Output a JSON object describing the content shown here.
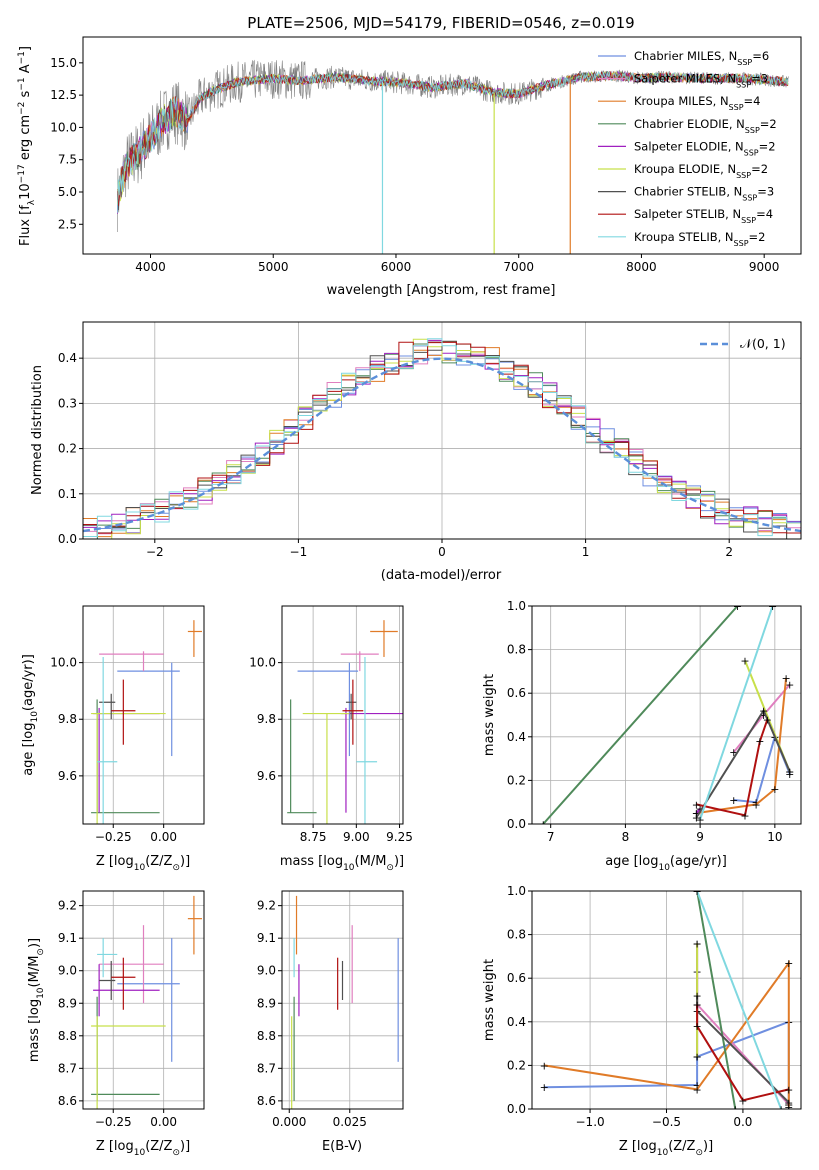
{
  "colors": {
    "miles_chabrier": "#6f8fe0",
    "miles_salpeter": "#e07fbf",
    "miles_kroupa": "#e07b28",
    "elodie_chabrier": "#4f8a5a",
    "elodie_salpeter": "#a020c0",
    "elodie_kroupa": "#c8e04a",
    "stelib_chabrier": "#505050",
    "stelib_salpeter": "#b01010",
    "stelib_kroupa": "#80d8e0",
    "normal": "#5b8fd9",
    "grid": "#b0b0b0"
  },
  "chart_data": [
    {
      "id": "spectrum",
      "type": "line",
      "title": "PLATE=2506, MJD=54179, FIBERID=0546, z=0.019",
      "xlabel": "wavelength [Angstrom, rest frame]",
      "ylabel": "Flux [f",
      "ylabel_parts": [
        "Flux [f",
        "λ",
        "10",
        "−17",
        " erg cm",
        "−2",
        " s",
        "−1",
        " A",
        "−1",
        "]"
      ],
      "xlim": [
        3450,
        9300
      ],
      "ylim": [
        0.2,
        17.0
      ],
      "xticks": [
        4000,
        5000,
        6000,
        7000,
        8000,
        9000
      ],
      "xtick_labels": [
        "4000",
        "5000",
        "6000",
        "7000",
        "8000",
        "9000"
      ],
      "yticks": [
        2.5,
        5.0,
        7.5,
        10.0,
        12.5,
        15.0
      ],
      "ytick_labels": [
        "2.5",
        "5.0",
        "7.5",
        "10.0",
        "12.5",
        "15.0"
      ],
      "legend": [
        {
          "label": "Chabrier MILES, N",
          "sub": "SSP",
          "suffix": "=6",
          "color": "#6f8fe0"
        },
        {
          "label": "Salpeter MILES, N",
          "sub": "SSP",
          "suffix": "=3",
          "color": "#e07fbf"
        },
        {
          "label": "Kroupa MILES, N",
          "sub": "SSP",
          "suffix": "=4",
          "color": "#e07b28"
        },
        {
          "label": "Chabrier ELODIE, N",
          "sub": "SSP",
          "suffix": "=2",
          "color": "#4f8a5a"
        },
        {
          "label": "Salpeter ELODIE, N",
          "sub": "SSP",
          "suffix": "=2",
          "color": "#a020c0"
        },
        {
          "label": "Kroupa ELODIE, N",
          "sub": "SSP",
          "suffix": "=2",
          "color": "#c8e04a"
        },
        {
          "label": "Chabrier STELIB, N",
          "sub": "SSP",
          "suffix": "=3",
          "color": "#505050"
        },
        {
          "label": "Salpeter STELIB, N",
          "sub": "SSP",
          "suffix": "=4",
          "color": "#b01010"
        },
        {
          "label": "Kroupa STELIB, N",
          "sub": "SSP",
          "suffix": "=2",
          "color": "#80d8e0"
        }
      ],
      "continuum": [
        [
          3730,
          4.5
        ],
        [
          3800,
          7.0
        ],
        [
          3900,
          8.0
        ],
        [
          4000,
          9.2
        ],
        [
          4100,
          10.5
        ],
        [
          4200,
          11.3
        ],
        [
          4300,
          10.5
        ],
        [
          4400,
          12.2
        ],
        [
          4500,
          12.8
        ],
        [
          4700,
          13.5
        ],
        [
          5000,
          13.8
        ],
        [
          5200,
          13.6
        ],
        [
          5500,
          13.9
        ],
        [
          5800,
          13.6
        ],
        [
          6000,
          13.5
        ],
        [
          6300,
          13.1
        ],
        [
          6560,
          13.4
        ],
        [
          6800,
          12.7
        ],
        [
          7000,
          12.6
        ],
        [
          7200,
          13.2
        ],
        [
          7500,
          13.9
        ],
        [
          7800,
          14.0
        ],
        [
          8000,
          13.8
        ],
        [
          8200,
          13.9
        ],
        [
          8500,
          13.8
        ],
        [
          8800,
          13.8
        ],
        [
          9000,
          13.7
        ],
        [
          9200,
          13.5
        ]
      ],
      "dips": [
        {
          "x": 5890,
          "y": 0.2,
          "color": "#80d8e0"
        },
        {
          "x": 6800,
          "y": 0.2,
          "color": "#c8e04a"
        },
        {
          "x": 7420,
          "y": 0.2,
          "color": "#e07b28"
        }
      ]
    },
    {
      "id": "residuals",
      "type": "line",
      "xlabel": "(data-model)/error",
      "ylabel": "Normed distribution",
      "xlim": [
        -2.5,
        2.5
      ],
      "ylim": [
        0.0,
        0.48
      ],
      "xticks": [
        -2,
        -1,
        0,
        1,
        2
      ],
      "xtick_labels": [
        "−2",
        "−1",
        "0",
        "1",
        "2"
      ],
      "yticks": [
        0.0,
        0.1,
        0.2,
        0.3,
        0.4
      ],
      "ytick_labels": [
        "0.0",
        "0.1",
        "0.2",
        "0.3",
        "0.4"
      ],
      "legend": [
        {
          "label": "𝒩(0, 1)",
          "color": "#5b8fd9",
          "style": "dashed"
        }
      ],
      "normal_curve": {
        "mean": 0,
        "sigma": 1
      }
    },
    {
      "id": "age-vs-Z",
      "type": "scatter",
      "xlabel": "Z [log",
      "xlabel_parts": [
        "Z [log",
        "10",
        "(Z/Z",
        "⊙",
        ")]"
      ],
      "ylabel_parts": [
        "age  [log",
        "10",
        "(age/yr)]"
      ],
      "xlim": [
        -0.4,
        0.2
      ],
      "ylim": [
        9.43,
        10.2
      ],
      "xticks": [
        -0.25,
        0.0
      ],
      "xtick_labels": [
        "−0.25",
        "0.00"
      ],
      "yticks": [
        9.6,
        9.8,
        10.0
      ],
      "ytick_labels": [
        "9.6",
        "9.8",
        "10.0"
      ]
    },
    {
      "id": "age-vs-mass",
      "type": "scatter",
      "xlabel_parts": [
        "mass [log",
        "10",
        "(M/M",
        "⊙",
        ")]"
      ],
      "xlim": [
        8.57,
        9.27
      ],
      "ylim": [
        9.43,
        10.2
      ],
      "xticks": [
        8.75,
        9.0,
        9.25
      ],
      "xtick_labels": [
        "8.75",
        "9.00",
        "9.25"
      ],
      "yticks": [
        9.6,
        9.8,
        10.0
      ],
      "ytick_labels": [
        "9.6",
        "9.8",
        "10.0"
      ]
    },
    {
      "id": "mass-weight-vs-age",
      "type": "line",
      "xlabel_parts": [
        "age  [log",
        "10",
        "(age/yr)]"
      ],
      "ylabel": "mass weight",
      "xlim": [
        6.75,
        10.35
      ],
      "ylim": [
        0.0,
        1.0
      ],
      "xticks": [
        7,
        8,
        9,
        10
      ],
      "xtick_labels": [
        "7",
        "8",
        "9",
        "10"
      ],
      "yticks": [
        0.0,
        0.2,
        0.4,
        0.6,
        0.8,
        1.0
      ],
      "ytick_labels": [
        "0.0",
        "0.2",
        "0.4",
        "0.6",
        "0.8",
        "1.0"
      ]
    },
    {
      "id": "mass-vs-Z",
      "type": "scatter",
      "xlabel_parts": [
        "Z [log",
        "10",
        "(Z/Z",
        "⊙",
        ")]"
      ],
      "ylabel_parts": [
        "mass [log",
        "10",
        "(M/M",
        "⊙",
        ")]"
      ],
      "xlim": [
        -0.4,
        0.2
      ],
      "ylim": [
        8.575,
        9.245
      ],
      "xticks": [
        -0.25,
        0.0
      ],
      "xtick_labels": [
        "−0.25",
        "0.00"
      ],
      "yticks": [
        8.6,
        8.7,
        8.8,
        8.9,
        9.0,
        9.1,
        9.2
      ],
      "ytick_labels": [
        "8.6",
        "8.7",
        "8.8",
        "8.9",
        "9.0",
        "9.1",
        "9.2"
      ]
    },
    {
      "id": "mass-vs-ebv",
      "type": "scatter",
      "xlabel": "E(B-V)",
      "xlim": [
        -0.003,
        0.047
      ],
      "ylim": [
        8.575,
        9.245
      ],
      "xticks": [
        0.0,
        0.025
      ],
      "xtick_labels": [
        "0.000",
        "0.025"
      ],
      "yticks": [
        8.6,
        8.7,
        8.8,
        8.9,
        9.0,
        9.1,
        9.2
      ],
      "ytick_labels": [
        "8.6",
        "8.7",
        "8.8",
        "8.9",
        "9.0",
        "9.1",
        "9.2"
      ]
    },
    {
      "id": "mass-weight-vs-Z",
      "type": "line",
      "xlabel_parts": [
        "Z [log",
        "10",
        "(Z/Z",
        "⊙",
        ")]"
      ],
      "ylabel": "mass weight",
      "xlim": [
        -1.38,
        0.38
      ],
      "ylim": [
        0.0,
        1.0
      ],
      "xticks": [
        -1.0,
        -0.5,
        0.0
      ],
      "xtick_labels": [
        "−1.0",
        "−0.5",
        "0.0"
      ],
      "yticks": [
        0.0,
        0.2,
        0.4,
        0.6,
        0.8,
        1.0
      ],
      "ytick_labels": [
        "0.0",
        "0.2",
        "0.4",
        "0.6",
        "0.8",
        "1.0"
      ]
    }
  ],
  "models": [
    {
      "name": "Chabrier MILES",
      "color": "#6f8fe0",
      "Z": 0.04,
      "age": 9.97,
      "mass": 8.96,
      "ebv": 0.045,
      "Zerr": [
        0.27,
        0.04
      ],
      "ageerr": [
        0.3,
        0.03
      ],
      "masserr": [
        0.24,
        0.14
      ],
      "masserr_age": [
        0.3,
        0.05
      ],
      "ageerr_m": [
        0.3,
        0.03
      ],
      "w_age": [
        [
          9.45,
          0.11
        ],
        [
          9.75,
          0.1
        ],
        [
          10.0,
          0.4
        ],
        [
          10.2,
          0.23
        ]
      ],
      "w_Z": [
        [
          -1.3,
          0.1
        ],
        [
          -0.3,
          0.11
        ],
        [
          -0.3,
          0.24
        ],
        [
          0.3,
          0.4
        ],
        [
          0.3,
          0.02
        ]
      ]
    },
    {
      "name": "Salpeter MILES",
      "color": "#e07fbf",
      "Z": -0.1,
      "age": 10.03,
      "mass": 9.02,
      "ebv": 0.026,
      "Zerr": [
        0.22,
        0.1
      ],
      "ageerr": [
        0.06,
        0.01
      ],
      "masserr": [
        0.12,
        0.12
      ],
      "masserr_age": [
        0.11,
        0.11
      ],
      "ageerr_m": [
        0.06,
        0.01
      ],
      "w_age": [
        [
          9.45,
          0.33
        ],
        [
          9.85,
          0.5
        ],
        [
          10.2,
          0.64
        ]
      ],
      "w_Z": [
        [
          -0.3,
          0.63
        ],
        [
          -0.3,
          0.48
        ],
        [
          0.3,
          0.02
        ]
      ]
    },
    {
      "name": "Kroupa MILES",
      "color": "#e07b28",
      "Z": 0.15,
      "age": 10.11,
      "mass": 9.16,
      "ebv": 0.003,
      "Zerr": [
        0.03,
        0.04
      ],
      "ageerr": [
        0.09,
        0.04
      ],
      "masserr": [
        0.11,
        0.07
      ],
      "masserr_age": [
        0.08,
        0.08
      ],
      "ageerr_m": [
        0.09,
        0.04
      ],
      "w_age": [
        [
          8.95,
          0.05
        ],
        [
          9.75,
          0.09
        ],
        [
          10.0,
          0.16
        ],
        [
          10.15,
          0.67
        ]
      ],
      "w_Z": [
        [
          -1.3,
          0.2
        ],
        [
          -0.3,
          0.09
        ],
        [
          0.3,
          0.67
        ],
        [
          0.3,
          0.01
        ]
      ]
    },
    {
      "name": "Chabrier ELODIE",
      "color": "#4f8a5a",
      "Z": -0.33,
      "age": 9.47,
      "mass": 8.62,
      "ebv": 0.002,
      "Zerr": [
        0.03,
        0.31
      ],
      "ageerr": [
        0.0,
        0.4
      ],
      "masserr": [
        0.02,
        0.3
      ],
      "masserr_age": [
        0.02,
        0.15
      ],
      "ageerr_m": [
        0.0,
        0.4
      ],
      "w_age": [
        [
          6.9,
          0.0
        ],
        [
          9.5,
          1.0
        ]
      ],
      "w_Z": [
        [
          -0.3,
          1.0
        ],
        [
          -0.05,
          0.0
        ]
      ]
    },
    {
      "name": "Salpeter ELODIE",
      "color": "#a020c0",
      "Z": -0.32,
      "age": 9.82,
      "mass": 8.94,
      "ebv": 0.004,
      "Zerr": [
        0.03,
        0.3
      ],
      "ageerr": [
        0.35,
        0.02
      ],
      "masserr": [
        0.08,
        0.08
      ],
      "masserr_age": [
        0.03,
        0.34
      ],
      "ageerr_m": [
        0.35,
        0.02
      ],
      "w_age": [
        [
          8.95,
          0.05
        ],
        [
          9.0,
          0.07
        ]
      ],
      "w_Z": [
        [
          -0.3,
          0.76
        ],
        [
          -0.3,
          0.24
        ]
      ]
    },
    {
      "name": "Kroupa ELODIE",
      "color": "#c8e04a",
      "Z": -0.33,
      "age": 9.82,
      "mass": 8.83,
      "ebv": 0.001,
      "Zerr": [
        0.03,
        0.34
      ],
      "ageerr": [
        0.4,
        0.0
      ],
      "masserr": [
        0.26,
        0.03
      ],
      "masserr_age": [
        0.14,
        0.13
      ],
      "ageerr_m": [
        0.4,
        0.0
      ],
      "w_age": [
        [
          9.6,
          0.75
        ],
        [
          10.2,
          0.24
        ]
      ],
      "w_Z": [
        [
          -0.3,
          0.76
        ],
        [
          -0.3,
          0.24
        ]
      ]
    },
    {
      "name": "Chabrier STELIB",
      "color": "#505050",
      "Z": -0.26,
      "age": 9.86,
      "mass": 8.97,
      "ebv": 0.022,
      "Zerr": [
        0.06,
        0.02
      ],
      "ageerr": [
        0.06,
        0.03
      ],
      "masserr": [
        0.06,
        0.06
      ],
      "masserr_age": [
        0.03,
        0.03
      ],
      "ageerr_m": [
        0.06,
        0.03
      ],
      "w_age": [
        [
          8.95,
          0.03
        ],
        [
          9.85,
          0.52
        ],
        [
          10.2,
          0.24
        ]
      ],
      "w_Z": [
        [
          -0.3,
          0.52
        ],
        [
          -0.3,
          0.45
        ],
        [
          0.3,
          0.03
        ]
      ]
    },
    {
      "name": "Salpeter STELIB",
      "color": "#b01010",
      "Z": -0.2,
      "age": 9.83,
      "mass": 8.98,
      "ebv": 0.02,
      "Zerr": [
        0.06,
        0.06
      ],
      "ageerr": [
        0.12,
        0.11
      ],
      "masserr": [
        0.1,
        0.06
      ],
      "masserr_age": [
        0.06,
        0.06
      ],
      "ageerr_m": [
        0.12,
        0.11
      ],
      "w_age": [
        [
          8.95,
          0.09
        ],
        [
          9.6,
          0.04
        ],
        [
          9.8,
          0.38
        ],
        [
          9.9,
          0.48
        ]
      ],
      "w_Z": [
        [
          -0.3,
          0.48
        ],
        [
          -0.3,
          0.38
        ],
        [
          0.0,
          0.04
        ],
        [
          0.3,
          0.09
        ]
      ]
    },
    {
      "name": "Kroupa STELIB",
      "color": "#80d8e0",
      "Z": -0.3,
      "age": 9.65,
      "mass": 9.05,
      "ebv": 0.002,
      "Zerr": [
        0.03,
        0.07
      ],
      "ageerr": [
        0.25,
        0.37
      ],
      "masserr": [
        0.07,
        0.05
      ],
      "masserr_age": [
        0.05,
        0.07
      ],
      "ageerr_m": [
        0.25,
        0.37
      ],
      "w_age": [
        [
          9.0,
          0.02
        ],
        [
          9.97,
          1.0
        ]
      ],
      "w_Z": [
        [
          -0.3,
          1.0
        ],
        [
          0.25,
          0.0
        ]
      ]
    }
  ]
}
